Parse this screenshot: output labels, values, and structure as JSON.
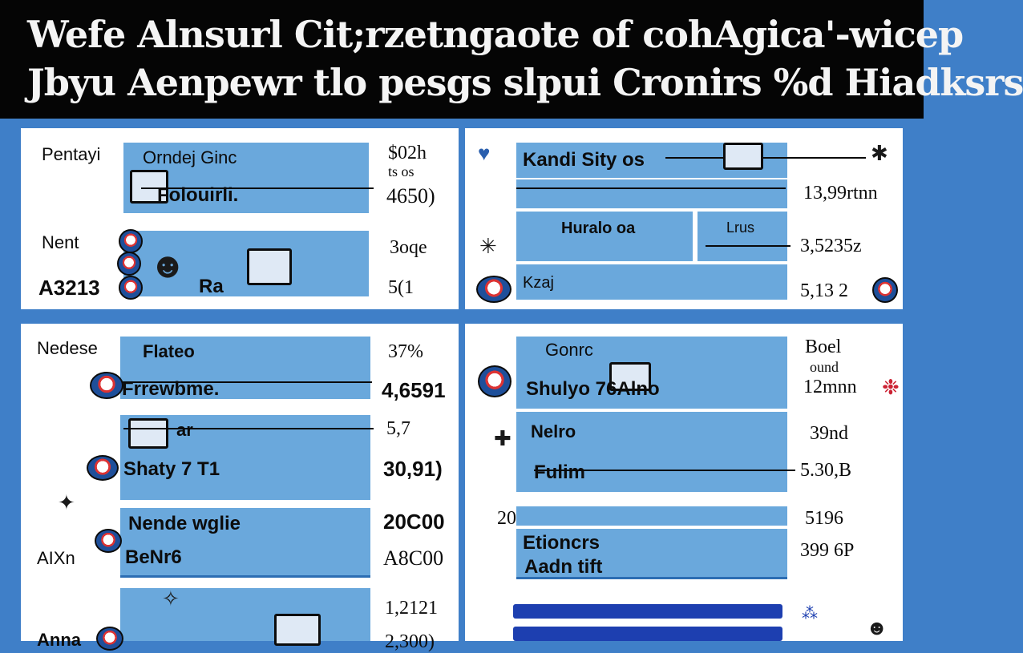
{
  "header": {
    "line1": "Wefe Alnsurl Cit;rzetngaote of cohAgica'-wicep",
    "line2": "Jbyu Aenpewr tlo pesgs slpui Cronirs %d Hiadksrs"
  },
  "panels": {
    "top_left": {
      "row1_label": "Pentayi",
      "row1_bar": "Orndej Ginc",
      "row1_bar_sub": "Folouirli.",
      "row1_value_a": "$02h",
      "row1_value_b": "ts os",
      "row1_value_c": "4650)",
      "row2_label": "Nent",
      "row2_value": "3oqe",
      "row3_label": "A3213",
      "row3_bar": "Ra",
      "row3_value": "5(1"
    },
    "top_right": {
      "row1_bar": "Kandi Sity os",
      "row1_value": "13,99rtnn",
      "row2_bar": "Huralo oa",
      "row2_bar_b": "Lrus",
      "row2_value": "3,5235z",
      "row3_bar": "Kzaj",
      "row3_value": "5,13 2"
    },
    "bottom_left": {
      "row1_label": "Nedese",
      "row1_bar": "Flateo",
      "row1_value": "37%",
      "row2_bar": "Frrewbme.",
      "row2_value": "4,6591",
      "row3_bar": "ar",
      "row3_value": "5,7",
      "row4_bar": "Shaty 7 T1",
      "row4_value": "30,91)",
      "row5_bar": "Nende wglie",
      "row5_value": "20C00",
      "row6_label": "AIXn",
      "row6_bar": "BeNr6",
      "row6_value": "A8C00",
      "row7_label": "Anna",
      "row7_value": "1,2121",
      "row8_value": "2,300)"
    },
    "bottom_right": {
      "row1_bar": "Gonrc",
      "row1_value_a": "Boel",
      "row1_value_b": "ound",
      "row1_value_c": "12mnn",
      "row2_bar": "Shulyo 76Alno",
      "row3_bar": "Nelro",
      "row3_value": "39nd",
      "row4_bar": "Fulim",
      "row4_value": "5.30,B",
      "row5_value_left": "20",
      "row5_value": "5196",
      "row6_bar": "Etioncrs",
      "row6_bar_sub": "Aadn tift",
      "row6_value": "399 6P"
    }
  },
  "icons": {
    "emblem": "team-badge-icon",
    "sketch": "ink-sketch-icon"
  },
  "colors": {
    "background": "#3f7fc8",
    "header": "#050505",
    "bar": "#6aa8dc",
    "navbar": "#1d3fb0"
  }
}
